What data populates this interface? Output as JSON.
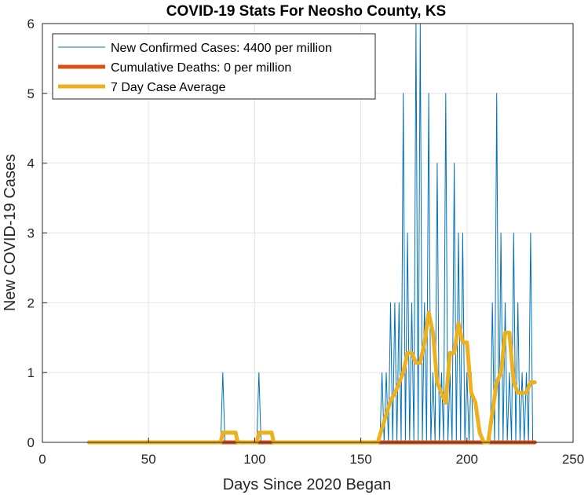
{
  "chart_data": {
    "type": "line",
    "title": "COVID-19 Stats For Neosho County, KS",
    "xlabel": "Days Since 2020 Began",
    "ylabel": "New COVID-19 Cases",
    "xlim": [
      0,
      250
    ],
    "ylim": [
      0,
      6
    ],
    "xticks": [
      0,
      50,
      100,
      150,
      200,
      250
    ],
    "yticks": [
      0,
      1,
      2,
      3,
      4,
      5,
      6
    ],
    "grid": true,
    "legend_position": "top-left",
    "series": [
      {
        "name": "New Confirmed Cases: 4400 per million",
        "color": "#0072BD",
        "x": [
          22,
          84,
          85,
          86,
          101,
          102,
          103,
          159,
          160,
          161,
          162,
          163,
          164,
          165,
          166,
          167,
          168,
          169,
          170,
          171,
          172,
          173,
          174,
          175,
          176,
          177,
          178,
          179,
          180,
          181,
          182,
          183,
          184,
          185,
          186,
          187,
          188,
          189,
          190,
          191,
          192,
          193,
          194,
          195,
          196,
          197,
          198,
          199,
          200,
          201,
          202,
          203,
          204,
          205,
          206,
          207,
          208,
          209,
          210,
          211,
          212,
          213,
          214,
          215,
          216,
          217,
          218,
          219,
          220,
          221,
          222,
          223,
          224,
          225,
          226,
          227,
          228,
          229,
          230,
          231,
          232
        ],
        "y": [
          0,
          0,
          1,
          0,
          0,
          1,
          0,
          0,
          1,
          0,
          1,
          0,
          2,
          0,
          2,
          0,
          2,
          0,
          5,
          0,
          3,
          0,
          2,
          0,
          6,
          0,
          6,
          0,
          2,
          0,
          5,
          0,
          1,
          0,
          4,
          0,
          1,
          0,
          5,
          0,
          1,
          0,
          4,
          0,
          3,
          0,
          3,
          0,
          1,
          0,
          1,
          0,
          0,
          0,
          0,
          0,
          0,
          0,
          0,
          0,
          2,
          0,
          5,
          0,
          3,
          0,
          2,
          0,
          1,
          0,
          3,
          0,
          2,
          0,
          1,
          0,
          1,
          0,
          3,
          0,
          0
        ]
      },
      {
        "name": "Cumulative Deaths: 0 per million",
        "color": "#D95319",
        "x": [
          22,
          232
        ],
        "y": [
          0,
          0
        ]
      },
      {
        "name": "7 Day Case Average",
        "color": "#EDB120",
        "x": [
          22,
          84,
          85,
          86,
          91,
          92,
          101,
          102,
          103,
          108,
          109,
          158,
          160,
          162,
          164,
          166,
          168,
          170,
          172,
          174,
          176,
          178,
          180,
          182,
          184,
          186,
          188,
          190,
          192,
          194,
          196,
          198,
          200,
          202,
          204,
          206,
          208,
          210,
          212,
          214,
          216,
          218,
          220,
          222,
          224,
          226,
          228,
          230,
          232
        ],
        "y": [
          0,
          0,
          0.14,
          0.14,
          0.14,
          0,
          0,
          0.14,
          0.14,
          0.14,
          0,
          0,
          0.2,
          0.4,
          0.6,
          0.7,
          0.85,
          1.0,
          1.28,
          1.28,
          1.14,
          1.14,
          1.43,
          1.86,
          1.57,
          0.86,
          0.71,
          0.57,
          1.28,
          1.28,
          1.71,
          1.43,
          1.43,
          0.71,
          0.57,
          0.14,
          0,
          0,
          0.43,
          0.86,
          1.0,
          1.57,
          1.57,
          0.86,
          0.71,
          0.71,
          0.71,
          0.86,
          0.86
        ]
      }
    ]
  }
}
